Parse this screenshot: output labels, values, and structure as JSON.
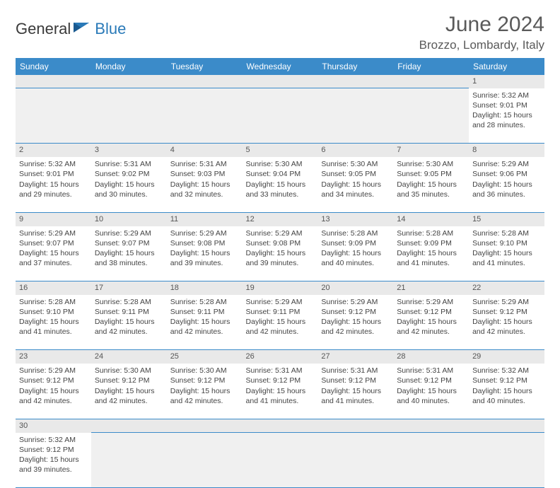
{
  "logo": {
    "general": "General",
    "blue": "Blue"
  },
  "header": {
    "monthTitle": "June 2024",
    "location": "Brozzo, Lombardy, Italy"
  },
  "colors": {
    "headerBg": "#3b8bc9",
    "headerText": "#ffffff",
    "dayStripBg": "#e9e9e9",
    "borderColor": "#3b8bc9",
    "logoAccent": "#2a7ab8"
  },
  "dayNames": [
    "Sunday",
    "Monday",
    "Tuesday",
    "Wednesday",
    "Thursday",
    "Friday",
    "Saturday"
  ],
  "weeks": [
    [
      null,
      null,
      null,
      null,
      null,
      null,
      {
        "n": "1",
        "sr": "5:32 AM",
        "ss": "9:01 PM",
        "dl": "15 hours and 28 minutes."
      }
    ],
    [
      {
        "n": "2",
        "sr": "5:32 AM",
        "ss": "9:01 PM",
        "dl": "15 hours and 29 minutes."
      },
      {
        "n": "3",
        "sr": "5:31 AM",
        "ss": "9:02 PM",
        "dl": "15 hours and 30 minutes."
      },
      {
        "n": "4",
        "sr": "5:31 AM",
        "ss": "9:03 PM",
        "dl": "15 hours and 32 minutes."
      },
      {
        "n": "5",
        "sr": "5:30 AM",
        "ss": "9:04 PM",
        "dl": "15 hours and 33 minutes."
      },
      {
        "n": "6",
        "sr": "5:30 AM",
        "ss": "9:05 PM",
        "dl": "15 hours and 34 minutes."
      },
      {
        "n": "7",
        "sr": "5:30 AM",
        "ss": "9:05 PM",
        "dl": "15 hours and 35 minutes."
      },
      {
        "n": "8",
        "sr": "5:29 AM",
        "ss": "9:06 PM",
        "dl": "15 hours and 36 minutes."
      }
    ],
    [
      {
        "n": "9",
        "sr": "5:29 AM",
        "ss": "9:07 PM",
        "dl": "15 hours and 37 minutes."
      },
      {
        "n": "10",
        "sr": "5:29 AM",
        "ss": "9:07 PM",
        "dl": "15 hours and 38 minutes."
      },
      {
        "n": "11",
        "sr": "5:29 AM",
        "ss": "9:08 PM",
        "dl": "15 hours and 39 minutes."
      },
      {
        "n": "12",
        "sr": "5:29 AM",
        "ss": "9:08 PM",
        "dl": "15 hours and 39 minutes."
      },
      {
        "n": "13",
        "sr": "5:28 AM",
        "ss": "9:09 PM",
        "dl": "15 hours and 40 minutes."
      },
      {
        "n": "14",
        "sr": "5:28 AM",
        "ss": "9:09 PM",
        "dl": "15 hours and 41 minutes."
      },
      {
        "n": "15",
        "sr": "5:28 AM",
        "ss": "9:10 PM",
        "dl": "15 hours and 41 minutes."
      }
    ],
    [
      {
        "n": "16",
        "sr": "5:28 AM",
        "ss": "9:10 PM",
        "dl": "15 hours and 41 minutes."
      },
      {
        "n": "17",
        "sr": "5:28 AM",
        "ss": "9:11 PM",
        "dl": "15 hours and 42 minutes."
      },
      {
        "n": "18",
        "sr": "5:28 AM",
        "ss": "9:11 PM",
        "dl": "15 hours and 42 minutes."
      },
      {
        "n": "19",
        "sr": "5:29 AM",
        "ss": "9:11 PM",
        "dl": "15 hours and 42 minutes."
      },
      {
        "n": "20",
        "sr": "5:29 AM",
        "ss": "9:12 PM",
        "dl": "15 hours and 42 minutes."
      },
      {
        "n": "21",
        "sr": "5:29 AM",
        "ss": "9:12 PM",
        "dl": "15 hours and 42 minutes."
      },
      {
        "n": "22",
        "sr": "5:29 AM",
        "ss": "9:12 PM",
        "dl": "15 hours and 42 minutes."
      }
    ],
    [
      {
        "n": "23",
        "sr": "5:29 AM",
        "ss": "9:12 PM",
        "dl": "15 hours and 42 minutes."
      },
      {
        "n": "24",
        "sr": "5:30 AM",
        "ss": "9:12 PM",
        "dl": "15 hours and 42 minutes."
      },
      {
        "n": "25",
        "sr": "5:30 AM",
        "ss": "9:12 PM",
        "dl": "15 hours and 42 minutes."
      },
      {
        "n": "26",
        "sr": "5:31 AM",
        "ss": "9:12 PM",
        "dl": "15 hours and 41 minutes."
      },
      {
        "n": "27",
        "sr": "5:31 AM",
        "ss": "9:12 PM",
        "dl": "15 hours and 41 minutes."
      },
      {
        "n": "28",
        "sr": "5:31 AM",
        "ss": "9:12 PM",
        "dl": "15 hours and 40 minutes."
      },
      {
        "n": "29",
        "sr": "5:32 AM",
        "ss": "9:12 PM",
        "dl": "15 hours and 40 minutes."
      }
    ],
    [
      {
        "n": "30",
        "sr": "5:32 AM",
        "ss": "9:12 PM",
        "dl": "15 hours and 39 minutes."
      },
      null,
      null,
      null,
      null,
      null,
      null
    ]
  ],
  "labels": {
    "sunrise": "Sunrise:",
    "sunset": "Sunset:",
    "daylight": "Daylight:"
  }
}
